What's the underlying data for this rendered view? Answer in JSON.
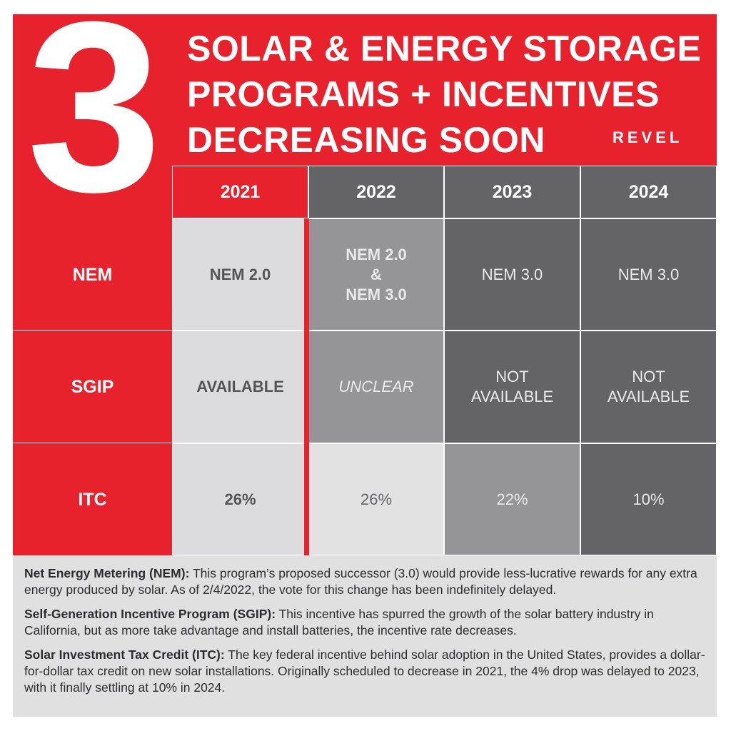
{
  "header": {
    "number": "3",
    "title_lines": [
      "SOLAR & ENERGY STORAGE",
      "PROGRAMS + INCENTIVES",
      "DECREASING SOON"
    ],
    "logo": "REVEL"
  },
  "table": {
    "years": [
      "2021",
      "2022",
      "2023",
      "2024"
    ],
    "rows": [
      {
        "label": "NEM",
        "cells": [
          "NEM 2.0",
          "NEM 2.0\n&\nNEM 3.0",
          "NEM 3.0",
          "NEM 3.0"
        ]
      },
      {
        "label": "SGIP",
        "cells": [
          "AVAILABLE",
          "UNCLEAR",
          "NOT\nAVAILABLE",
          "NOT\nAVAILABLE"
        ]
      },
      {
        "label": "ITC",
        "cells": [
          "26%",
          "26%",
          "22%",
          "10%"
        ]
      }
    ]
  },
  "notes": [
    {
      "term": "Net Energy Metering (NEM):",
      "text": " This program’s proposed successor (3.0) would provide less-lucrative rewards for any extra energy produced by solar. As of 2/4/2022, the vote for this change has been indefinitely delayed."
    },
    {
      "term": "Self-Generation Incentive Program (SGIP):",
      "text": " This incentive has spurred the growth of the solar battery industry in California, but as more take advantage and install batteries, the incentive rate decreases."
    },
    {
      "term": "Solar Investment Tax Credit (ITC):",
      "text": " The key federal incentive behind solar adoption in the United States, provides a dollar-for-dollar tax credit on new solar installations. Originally scheduled to decrease in 2021, the 4% drop was delayed to 2023, with it finally settling at 10% in 2024."
    }
  ],
  "colors": {
    "red": "#e8222c",
    "dark_gray": "#646466",
    "mid_gray": "#959597",
    "light_gray": "#dcdcde"
  }
}
